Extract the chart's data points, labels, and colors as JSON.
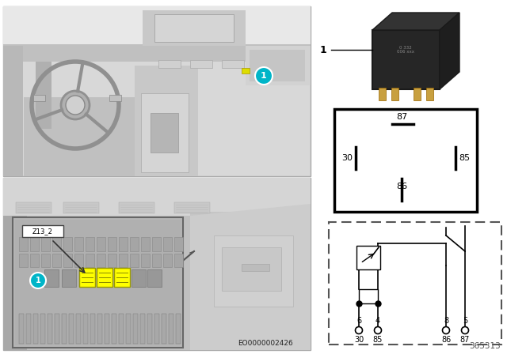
{
  "bg_color": "#ffffff",
  "cyan_color": "#00b5c8",
  "yellow_color": "#ffff00",
  "eo_code": "EO0000002426",
  "part_number": "365313",
  "z13_2_label": "Z13_2",
  "photo_gray1": "#d4d4d4",
  "photo_gray2": "#c2c2c2",
  "photo_gray3": "#b8b8b8",
  "photo_gray4": "#e0e0e0",
  "photo_gray5": "#a8a8a8",
  "relay_dark": "#282828",
  "relay_mid": "#3a3a3a",
  "relay_pin": "#c8a060"
}
